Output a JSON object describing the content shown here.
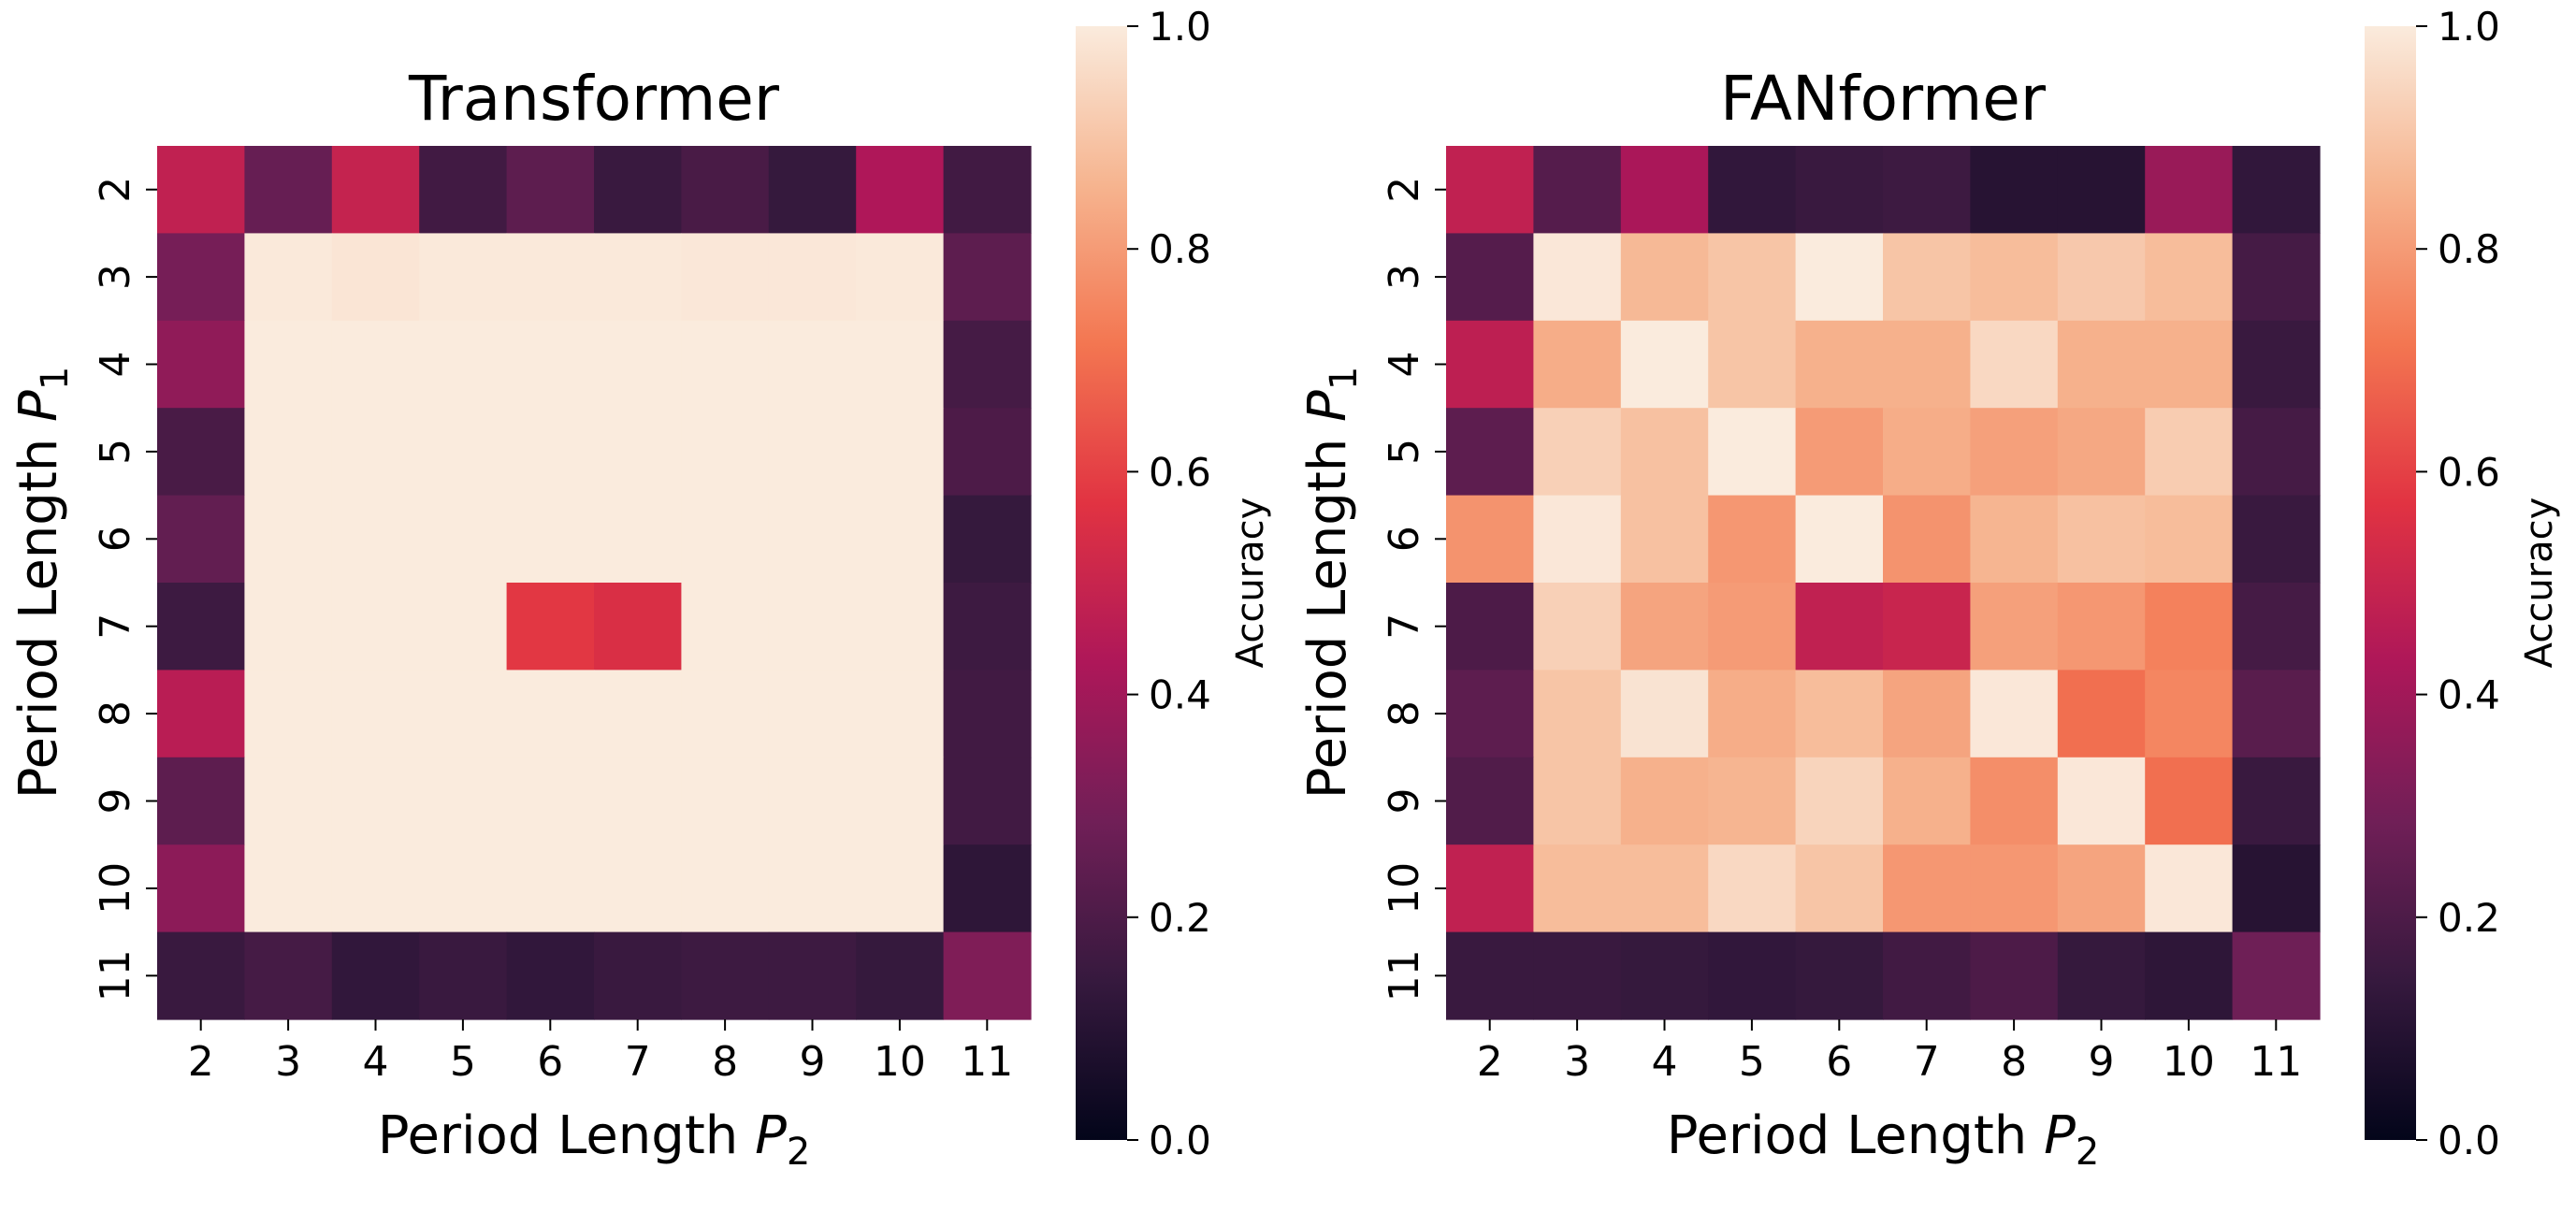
{
  "chart_data": [
    {
      "type": "heatmap",
      "title": "Transformer",
      "xlabel": "Period Length P2",
      "xlabel_text": "Period Length ",
      "xlabel_var": "P",
      "xlabel_sub": "2",
      "ylabel": "Period Length P1",
      "ylabel_text": "Period Length ",
      "ylabel_var": "P",
      "ylabel_sub": "1",
      "x_categories": [
        "2",
        "3",
        "4",
        "5",
        "6",
        "7",
        "8",
        "9",
        "10",
        "11"
      ],
      "y_categories": [
        "2",
        "3",
        "4",
        "5",
        "6",
        "7",
        "8",
        "9",
        "10",
        "11"
      ],
      "values": [
        [
          0.48,
          0.26,
          0.49,
          0.17,
          0.24,
          0.15,
          0.19,
          0.14,
          0.43,
          0.17
        ],
        [
          0.3,
          0.995,
          0.985,
          0.995,
          0.995,
          0.995,
          0.99,
          0.99,
          0.995,
          0.24
        ],
        [
          0.36,
          1.0,
          1.0,
          1.0,
          1.0,
          1.0,
          1.0,
          1.0,
          1.0,
          0.18
        ],
        [
          0.19,
          1.0,
          1.0,
          1.0,
          1.0,
          1.0,
          1.0,
          1.0,
          1.0,
          0.2
        ],
        [
          0.25,
          1.0,
          1.0,
          1.0,
          1.0,
          1.0,
          1.0,
          1.0,
          1.0,
          0.14
        ],
        [
          0.16,
          1.0,
          1.0,
          1.0,
          0.58,
          0.55,
          1.0,
          1.0,
          1.0,
          0.16
        ],
        [
          0.46,
          1.0,
          1.0,
          1.0,
          1.0,
          1.0,
          1.0,
          1.0,
          1.0,
          0.17
        ],
        [
          0.24,
          1.0,
          1.0,
          1.0,
          1.0,
          1.0,
          1.0,
          1.0,
          1.0,
          0.17
        ],
        [
          0.35,
          1.0,
          1.0,
          1.0,
          1.0,
          1.0,
          1.0,
          1.0,
          1.0,
          0.12
        ],
        [
          0.15,
          0.18,
          0.13,
          0.15,
          0.13,
          0.15,
          0.16,
          0.16,
          0.14,
          0.32
        ]
      ],
      "colorbar": {
        "label": "Accuracy",
        "range": [
          0.0,
          1.0
        ],
        "ticks": [
          "0.0",
          "0.2",
          "0.4",
          "0.6",
          "0.8",
          "1.0"
        ]
      }
    },
    {
      "type": "heatmap",
      "title": "FANformer",
      "xlabel": "Period Length P2",
      "xlabel_text": "Period Length ",
      "xlabel_var": "P",
      "xlabel_sub": "2",
      "ylabel": "Period Length P1",
      "ylabel_text": "Period Length ",
      "ylabel_var": "P",
      "ylabel_sub": "1",
      "x_categories": [
        "2",
        "3",
        "4",
        "5",
        "6",
        "7",
        "8",
        "9",
        "10",
        "11"
      ],
      "y_categories": [
        "2",
        "3",
        "4",
        "5",
        "6",
        "7",
        "8",
        "9",
        "10",
        "11"
      ],
      "values": [
        [
          0.48,
          0.22,
          0.42,
          0.13,
          0.15,
          0.16,
          0.1,
          0.1,
          0.38,
          0.13
        ],
        [
          0.22,
          0.99,
          0.87,
          0.9,
          1.0,
          0.9,
          0.88,
          0.91,
          0.88,
          0.18
        ],
        [
          0.47,
          0.84,
          1.0,
          0.9,
          0.85,
          0.85,
          0.95,
          0.85,
          0.85,
          0.15
        ],
        [
          0.24,
          0.93,
          0.89,
          1.0,
          0.8,
          0.84,
          0.81,
          0.83,
          0.92,
          0.18
        ],
        [
          0.78,
          0.99,
          0.89,
          0.79,
          1.0,
          0.78,
          0.86,
          0.89,
          0.88,
          0.15
        ],
        [
          0.2,
          0.93,
          0.82,
          0.8,
          0.48,
          0.5,
          0.81,
          0.79,
          0.74,
          0.18
        ],
        [
          0.24,
          0.9,
          0.98,
          0.84,
          0.88,
          0.82,
          0.99,
          0.7,
          0.75,
          0.23
        ],
        [
          0.21,
          0.9,
          0.85,
          0.86,
          0.94,
          0.85,
          0.77,
          0.99,
          0.7,
          0.15
        ],
        [
          0.48,
          0.88,
          0.88,
          0.95,
          0.9,
          0.79,
          0.79,
          0.82,
          0.99,
          0.1
        ],
        [
          0.15,
          0.15,
          0.14,
          0.13,
          0.14,
          0.17,
          0.2,
          0.14,
          0.12,
          0.28
        ]
      ],
      "colorbar": {
        "label": "Accuracy",
        "range": [
          0.0,
          1.0
        ],
        "ticks": [
          "0.0",
          "0.2",
          "0.4",
          "0.6",
          "0.8",
          "1.0"
        ]
      }
    }
  ],
  "colormap": {
    "name": "rocket",
    "stops": [
      "#03051a",
      "#36193e",
      "#701f57",
      "#ae1759",
      "#e13342",
      "#f37651",
      "#f6b48f",
      "#faebdd"
    ]
  }
}
